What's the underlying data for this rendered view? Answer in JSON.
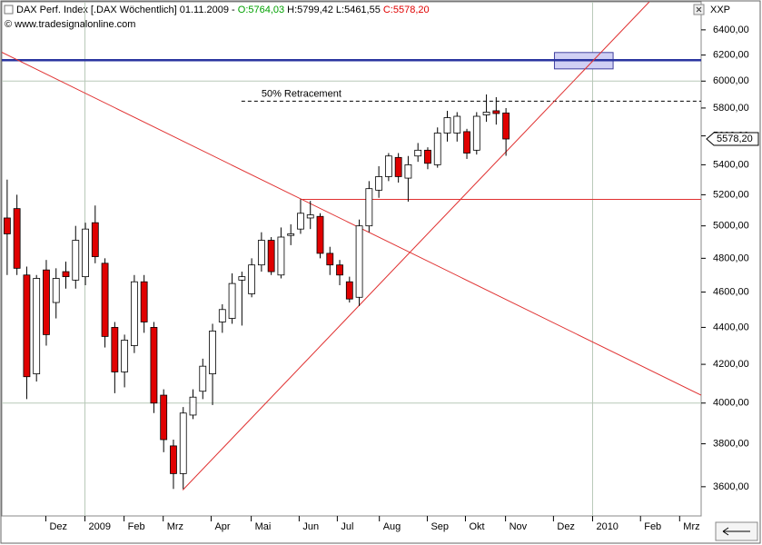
{
  "chart_data": {
    "type": "candlestick",
    "title": "DAX Perf. Index [.DAX  Wöchentlich] 01.11.2009 - ",
    "ohlc_labels": [
      "O:5764,03",
      "H:5799,42",
      "L:5461,55",
      "C:5578,20"
    ],
    "ohlc_colors": [
      "#00a000",
      "#000000",
      "#000000",
      "#e00000"
    ],
    "source": "© www.tradesignalonline.com",
    "axis_label": "XXP",
    "open": [
      5050,
      5110,
      4700,
      4150,
      4730,
      4540,
      4720,
      4670,
      4690,
      5020,
      4770,
      4400,
      4160,
      4300,
      4660,
      4400,
      4040,
      3790,
      3660,
      3940,
      4060,
      4150,
      4430,
      4450,
      4670,
      4590,
      4760,
      4910,
      4700,
      4940,
      4980,
      5050,
      5060,
      4830,
      4760,
      4660,
      4570,
      5000,
      5230,
      5320,
      5450,
      5310,
      5460,
      5500,
      5400,
      5620,
      5620,
      5630,
      5500,
      5750,
      5780,
      5764.03
    ],
    "high": [
      5300,
      5200,
      4750,
      4700,
      4790,
      4740,
      4780,
      5000,
      5020,
      5130,
      4800,
      4430,
      4360,
      4700,
      4700,
      4430,
      4070,
      3820,
      3980,
      4070,
      4230,
      4420,
      4530,
      4710,
      4720,
      4800,
      4960,
      4930,
      4990,
      5010,
      5170,
      5160,
      5080,
      4870,
      4790,
      4690,
      5040,
      5290,
      5390,
      5480,
      5480,
      5460,
      5550,
      5520,
      5660,
      5780,
      5770,
      5650,
      5770,
      5900,
      5880,
      5799.42
    ],
    "low": [
      4700,
      4700,
      4020,
      4110,
      4300,
      4450,
      4620,
      4620,
      4640,
      4770,
      4290,
      4050,
      4080,
      4260,
      4370,
      3950,
      3760,
      3590,
      3590,
      3920,
      4020,
      3990,
      4370,
      4420,
      4410,
      4570,
      4720,
      4700,
      4680,
      4880,
      4950,
      4980,
      4800,
      4700,
      4640,
      4540,
      4520,
      4960,
      5180,
      5290,
      5280,
      5155,
      5420,
      5370,
      5380,
      5560,
      5560,
      5440,
      5470,
      5700,
      5680,
      5461.55
    ],
    "close": [
      4950,
      4740,
      4135,
      4680,
      4360,
      4680,
      4690,
      4910,
      4980,
      4810,
      4350,
      4160,
      4330,
      4660,
      4430,
      4000,
      3820,
      3660,
      3950,
      4030,
      4190,
      4380,
      4500,
      4650,
      4690,
      4760,
      4910,
      4720,
      4930,
      4950,
      5080,
      5070,
      4830,
      4760,
      4700,
      4560,
      5000,
      5240,
      5320,
      5460,
      5320,
      5400,
      5500,
      5410,
      5620,
      5730,
      5740,
      5480,
      5740,
      5770,
      5760,
      5578.2
    ],
    "up_color": "#ffffff",
    "down_color": "#e00000",
    "log_y": true,
    "ylim": [
      3470,
      6630
    ],
    "yticks": [
      {
        "value": 3600,
        "label": "3600,00"
      },
      {
        "value": 3800,
        "label": "3800,00"
      },
      {
        "value": 4000,
        "label": "4000,00"
      },
      {
        "value": 4200,
        "label": "4200,00"
      },
      {
        "value": 4400,
        "label": "4400,00"
      },
      {
        "value": 4600,
        "label": "4600,00"
      },
      {
        "value": 4800,
        "label": "4800,00"
      },
      {
        "value": 5000,
        "label": "5000,00"
      },
      {
        "value": 5200,
        "label": "5200,00"
      },
      {
        "value": 5400,
        "label": "5400,00"
      },
      {
        "value": 5600,
        "label": "5600,00"
      },
      {
        "value": 5800,
        "label": "5800,00"
      },
      {
        "value": 6000,
        "label": "6000,00"
      },
      {
        "value": 6200,
        "label": "6200,00"
      },
      {
        "value": 6400,
        "label": "6400,00"
      }
    ],
    "xlim": [
      -0.5,
      71
    ],
    "xticks": [
      {
        "value": 4,
        "label": "Dez"
      },
      {
        "value": 8,
        "label": "2009"
      },
      {
        "value": 12,
        "label": "Feb"
      },
      {
        "value": 16,
        "label": "Mrz"
      },
      {
        "value": 20.9,
        "label": "Apr"
      },
      {
        "value": 25,
        "label": "Mai"
      },
      {
        "value": 29.9,
        "label": "Jun"
      },
      {
        "value": 33.8,
        "label": "Jul"
      },
      {
        "value": 38.1,
        "label": "Aug"
      },
      {
        "value": 43,
        "label": "Sep"
      },
      {
        "value": 46.9,
        "label": "Okt"
      },
      {
        "value": 51,
        "label": "Nov"
      },
      {
        "value": 55.9,
        "label": "Dez"
      },
      {
        "value": 59.9,
        "label": "2010"
      },
      {
        "value": 64.8,
        "label": "Feb"
      },
      {
        "value": 68.8,
        "label": "Mrz"
      }
    ],
    "grid_y": [
      4000,
      6000
    ],
    "grid_x": [
      8,
      59.9
    ],
    "last_price": {
      "value": 5578.2,
      "label": "5578,20"
    },
    "levels": [
      {
        "value": 6160,
        "color": "#2a35a0",
        "from": -0.5
      },
      {
        "value": 5850,
        "color": "#000000",
        "from": 24,
        "dashed": true,
        "label": "50% Retracement"
      },
      {
        "value": 5170,
        "color": "#e03030",
        "from": 30
      }
    ],
    "trendlines": [
      {
        "x": [
          -0.65,
          71
        ],
        "y": [
          6227,
          4040
        ],
        "color": "#e03030"
      },
      {
        "x": [
          18,
          65.7
        ],
        "y": [
          3585,
          6630
        ],
        "color": "#e03030"
      }
    ],
    "zone": {
      "x": [
        56,
        62
      ],
      "y": [
        6093,
        6220
      ],
      "color": "#d0d0f4"
    }
  }
}
